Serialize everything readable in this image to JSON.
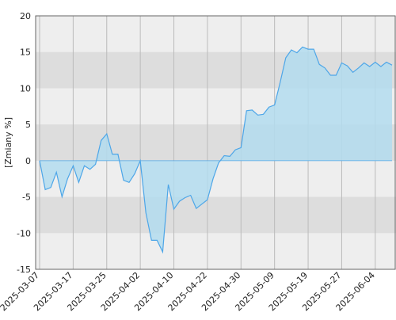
{
  "chart_data": {
    "type": "area",
    "y_label": "[Zmiany %]",
    "categories": [
      "2025-03-07",
      null,
      null,
      null,
      null,
      null,
      "2025-03-17",
      null,
      null,
      null,
      null,
      null,
      "2025-03-25",
      null,
      null,
      null,
      null,
      null,
      "2025-04-02",
      null,
      null,
      null,
      null,
      null,
      "2025-04-10",
      null,
      null,
      null,
      null,
      null,
      "2025-04-22",
      null,
      null,
      null,
      null,
      null,
      "2025-04-30",
      null,
      null,
      null,
      null,
      null,
      "2025-05-09",
      null,
      null,
      null,
      null,
      null,
      "2025-05-19",
      null,
      null,
      null,
      null,
      null,
      "2025-05-27",
      null,
      null,
      null,
      null,
      null,
      "2025-06-04",
      null,
      null,
      null
    ],
    "values": [
      0,
      -4,
      -3.7,
      -1.6,
      -5,
      -2.5,
      -0.7,
      -3,
      -0.7,
      -1.2,
      -0.5,
      2.8,
      3.7,
      0.9,
      0.9,
      -2.7,
      -3,
      -1.8,
      0,
      -7.2,
      -11,
      -11,
      -12.6,
      -3.3,
      -6.7,
      -5.6,
      -5.1,
      -4.8,
      -6.6,
      -6,
      -5.4,
      -2.5,
      -0.3,
      0.7,
      0.6,
      1.5,
      1.8,
      6.9,
      7,
      6.3,
      6.4,
      7.4,
      7.7,
      10.8,
      14.2,
      15.3,
      14.9,
      15.7,
      15.4,
      15.4,
      13.3,
      12.8,
      11.8,
      11.8,
      13.5,
      13.1,
      12.2,
      12.8,
      13.5,
      13,
      13.6,
      13,
      13.6,
      13.2
    ],
    "color": "#4da6e8",
    "fill_color": "#b3dcee",
    "ylim": [
      -15,
      20
    ],
    "yticks": [
      -15,
      -10,
      -5,
      0,
      5,
      10,
      15,
      20
    ],
    "grid": true
  }
}
